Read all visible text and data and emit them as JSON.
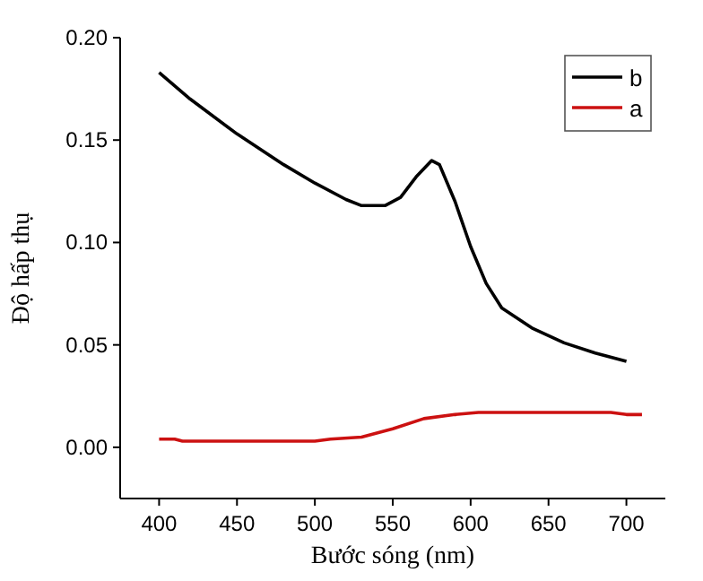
{
  "chart_data": {
    "type": "line",
    "xlabel": "Bước sóng (nm)",
    "ylabel": "Độ hấp thụ",
    "xlim": [
      375,
      725
    ],
    "xticks": [
      400,
      450,
      500,
      550,
      600,
      650,
      700
    ],
    "ylim": [
      -0.025,
      0.2
    ],
    "yticks": [
      {
        "value": 0,
        "label": "0.00"
      },
      {
        "value": 0.05,
        "label": "0.05"
      },
      {
        "value": 0.1,
        "label": "0.10"
      },
      {
        "value": 0.15,
        "label": "0.15"
      },
      {
        "value": 0.2,
        "label": "0.20"
      }
    ],
    "legend": "top right",
    "grid": false,
    "marker": "none",
    "line_style": "solid",
    "series": [
      {
        "name": "b",
        "color": "#000000",
        "x": [
          400,
          420,
          450,
          480,
          500,
          520,
          530,
          545,
          555,
          565,
          575,
          580,
          590,
          600,
          610,
          620,
          640,
          660,
          680,
          700
        ],
        "values": [
          0.183,
          0.17,
          0.153,
          0.138,
          0.129,
          0.121,
          0.118,
          0.118,
          0.122,
          0.132,
          0.14,
          0.138,
          0.12,
          0.098,
          0.08,
          0.068,
          0.058,
          0.051,
          0.046,
          0.042
        ]
      },
      {
        "name": "a",
        "color": "#cc1111",
        "x": [
          400,
          410,
          415,
          450,
          500,
          510,
          530,
          550,
          570,
          590,
          605,
          650,
          690,
          700,
          710
        ],
        "values": [
          0.004,
          0.004,
          0.003,
          0.003,
          0.003,
          0.004,
          0.005,
          0.009,
          0.014,
          0.016,
          0.017,
          0.017,
          0.017,
          0.016,
          0.016
        ]
      }
    ]
  }
}
